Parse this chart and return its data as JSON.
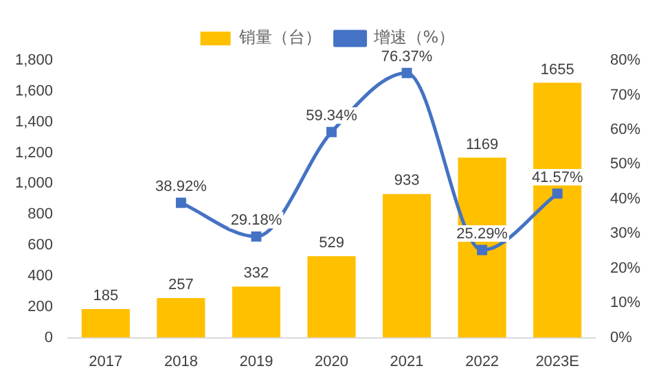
{
  "chart_data": {
    "type": "bar",
    "categories": [
      "2017",
      "2018",
      "2019",
      "2020",
      "2021",
      "2022",
      "2023E"
    ],
    "series": [
      {
        "name": "销量（台）",
        "color": "#ffc000",
        "values": [
          185,
          257,
          332,
          529,
          933,
          1169,
          1655
        ],
        "value_labels": [
          "185",
          "257",
          "332",
          "529",
          "933",
          "1169",
          "1655"
        ]
      },
      {
        "name": "增速（%）",
        "type": "line",
        "axis": "y2",
        "color": "#4472c4",
        "marker": "square",
        "values": [
          null,
          38.92,
          29.18,
          59.34,
          76.37,
          25.29,
          41.57
        ],
        "value_labels": [
          null,
          "38.92%",
          "29.18%",
          "59.34%",
          "76.37%",
          "25.29%",
          "41.57%"
        ]
      }
    ],
    "ylim": [
      0,
      1800
    ],
    "yticks": [
      0,
      200,
      400,
      600,
      800,
      {
        "value": 1000,
        "label": "1,000"
      },
      {
        "value": 1200,
        "label": "1,200"
      },
      {
        "value": 1400,
        "label": "1,400"
      },
      {
        "value": 1600,
        "label": "1,600"
      },
      {
        "value": 1800,
        "label": "1,800"
      }
    ],
    "y2lim": [
      0,
      80
    ],
    "y2ticks": [
      {
        "value": 0,
        "label": "0%"
      },
      {
        "value": 10,
        "label": "10%"
      },
      {
        "value": 20,
        "label": "20%"
      },
      {
        "value": 30,
        "label": "30%"
      },
      {
        "value": 40,
        "label": "40%"
      },
      {
        "value": 50,
        "label": "50%"
      },
      {
        "value": 60,
        "label": "60%"
      },
      {
        "value": 70,
        "label": "70%"
      },
      {
        "value": 80,
        "label": "80%"
      }
    ],
    "grid": false,
    "legend": "top"
  }
}
